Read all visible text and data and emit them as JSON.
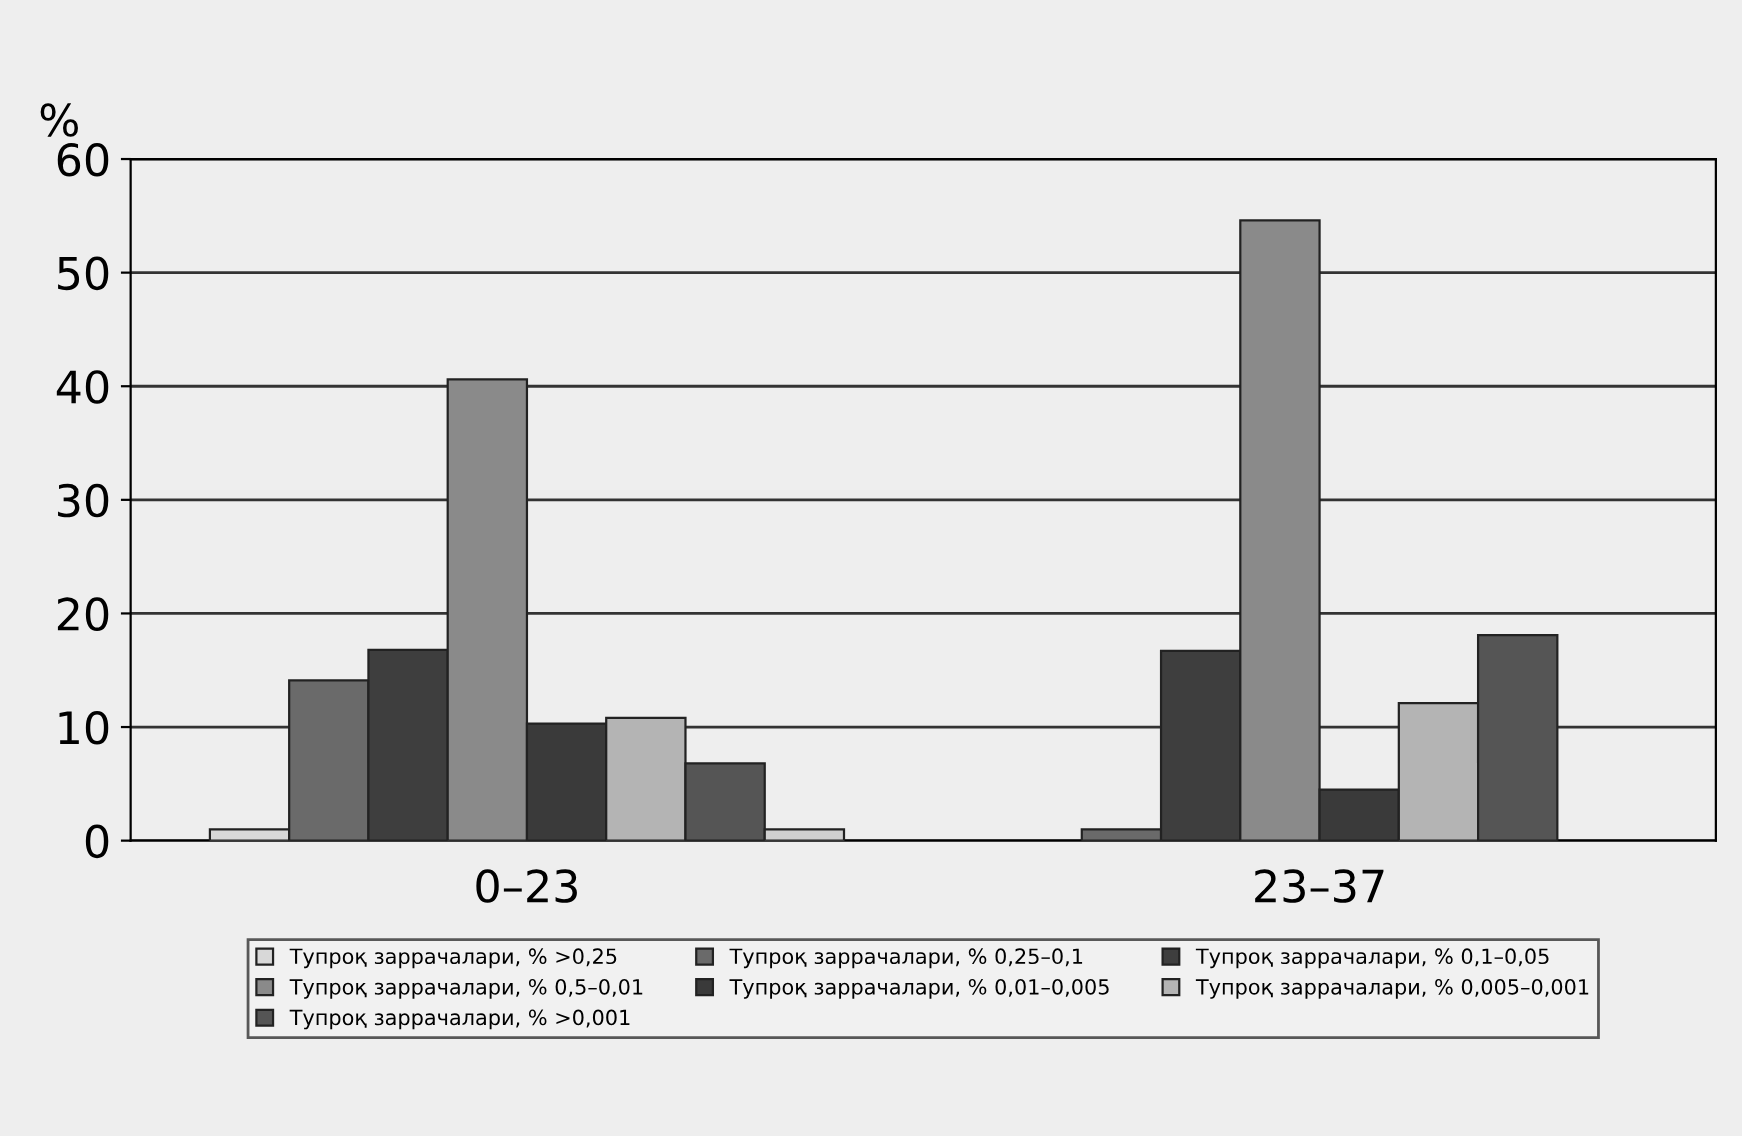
{
  "chart_data": {
    "type": "bar",
    "ylabel": "%",
    "categories": [
      "0–23",
      "23–37"
    ],
    "series": [
      {
        "name": "Тупроқ заррачалари, % >0,25",
        "color": "#d8d8d8",
        "values": [
          1.0,
          null
        ]
      },
      {
        "name": "Тупроқ заррачалари, % 0,25–0,1",
        "color": "#6a6a6a",
        "values": [
          14.1,
          1.0
        ]
      },
      {
        "name": "Тупроқ заррачалари, % 0,1–0,05",
        "color": "#3e3e3e",
        "values": [
          16.8,
          16.7
        ]
      },
      {
        "name": "Тупроқ заррачалари, % 0,5–0,01",
        "color": "#8a8a8a",
        "values": [
          40.6,
          54.6
        ]
      },
      {
        "name": "Тупроқ заррачалари, % 0,01–0,005",
        "color": "#3a3a3a",
        "values": [
          10.3,
          4.5
        ]
      },
      {
        "name": "Тупроқ заррачалари, % 0,005–0,001",
        "color": "#b4b4b4",
        "values": [
          10.8,
          12.1
        ]
      },
      {
        "name": "Тупроқ заррачалари, % >0,001",
        "color": "#555555",
        "values": [
          6.8,
          18.1
        ]
      },
      {
        "color": "#d0d0d0",
        "values": [
          1.0,
          null
        ]
      }
    ],
    "ylim": [
      0,
      60
    ],
    "yticks": [
      0,
      10,
      20,
      30,
      40,
      50,
      60
    ],
    "grid": "y",
    "legend": "bottom"
  }
}
